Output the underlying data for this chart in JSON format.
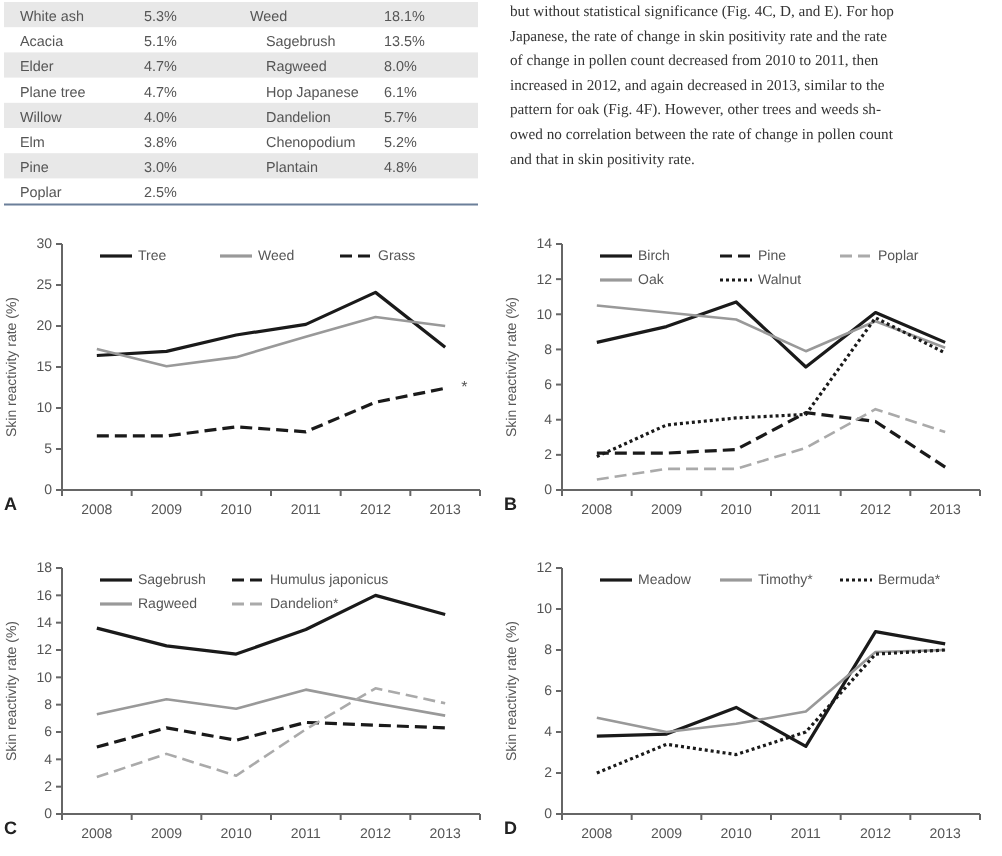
{
  "chart_data": [
    {
      "type": "other",
      "annotations": [
        "White ash",
        "5.3%",
        "Weed",
        "18.1%",
        "Acacia",
        "5.1%",
        "Sagebrush",
        "13.5%",
        "Elder",
        "4.7%",
        "Ragweed",
        "8.0%",
        "Plane tree",
        "4.7%",
        "Hop Japanese",
        "6.1%",
        "Willow",
        "4.0%",
        "Dandelion",
        "5.7%",
        "Elm",
        "3.8%",
        "Chenopodium",
        "5.2%",
        "Pine",
        "3.0%",
        "Plantain",
        "4.8%",
        "Poplar",
        "2.5%"
      ]
    },
    {
      "type": "other",
      "annotations": [
        "but without statistical significance (Fig. 4C, D, and E). For hop",
        "Japanese, the rate of change in skin positivity rate and the rate",
        "of change in pollen count decreased from 2010 to 2011, then",
        "increased in 2012, and again decreased in 2013, similar to the",
        "pattern for oak (Fig. 4F). However, other trees and weeds sh-",
        "owed no correlation between the rate of change in pollen count",
        "and that in skin positivity rate."
      ]
    },
    {
      "type": "line",
      "categories": [
        "2008",
        "2009",
        "2010",
        "2011",
        "2012",
        "2013"
      ],
      "ylabel": "Skin reactivity rate (%)",
      "ylim": [
        0,
        30
      ],
      "yticks": [
        0,
        5,
        10,
        15,
        20,
        25,
        30
      ],
      "legend": "top",
      "annotations": [
        "A",
        {
          "text": "*",
          "x": "2013",
          "y": 12.4
        }
      ],
      "series": [
        {
          "name": "Tree",
          "color": "#1a1a1a",
          "line_style": "solid",
          "values": [
            16.4,
            16.9,
            18.9,
            20.2,
            24.1,
            17.4
          ]
        },
        {
          "name": "Weed",
          "color": "#999999",
          "line_style": "solid",
          "values": [
            17.2,
            15.1,
            16.2,
            18.7,
            21.1,
            20.0
          ]
        },
        {
          "name": "Grass",
          "color": "#1a1a1a",
          "line_style": "dashed",
          "values": [
            6.6,
            6.6,
            7.7,
            7.1,
            10.7,
            12.4
          ]
        }
      ]
    },
    {
      "type": "line",
      "categories": [
        "2008",
        "2009",
        "2010",
        "2011",
        "2012",
        "2013"
      ],
      "ylabel": "Skin reactivity rate (%)",
      "ylim": [
        0,
        14
      ],
      "yticks": [
        0,
        2,
        4,
        6,
        8,
        10,
        12,
        14
      ],
      "legend": "top",
      "annotations": [
        "B"
      ],
      "series": [
        {
          "name": "Birch",
          "color": "#1a1a1a",
          "line_style": "solid",
          "values": [
            8.4,
            9.3,
            10.7,
            7.0,
            10.1,
            8.4
          ]
        },
        {
          "name": "Pine",
          "color": "#1a1a1a",
          "line_style": "dashed",
          "values": [
            2.1,
            2.1,
            2.3,
            4.4,
            3.9,
            1.3
          ]
        },
        {
          "name": "Poplar",
          "color": "#aaaaaa",
          "line_style": "dashed",
          "values": [
            0.6,
            1.2,
            1.2,
            2.4,
            4.6,
            3.3
          ]
        },
        {
          "name": "Oak",
          "color": "#999999",
          "line_style": "solid",
          "values": [
            10.5,
            10.1,
            9.7,
            7.9,
            9.6,
            8.1
          ]
        },
        {
          "name": "Walnut",
          "color": "#1a1a1a",
          "line_style": "dotted",
          "values": [
            1.9,
            3.7,
            4.1,
            4.3,
            9.8,
            7.8
          ]
        }
      ]
    },
    {
      "type": "line",
      "categories": [
        "2008",
        "2009",
        "2010",
        "2011",
        "2012",
        "2013"
      ],
      "ylabel": "Skin reactivity rate (%)",
      "ylim": [
        0,
        18
      ],
      "yticks": [
        0,
        2,
        4,
        6,
        8,
        10,
        12,
        14,
        16,
        18
      ],
      "legend": "top",
      "annotations": [
        "C"
      ],
      "series": [
        {
          "name": "Sagebrush",
          "color": "#1a1a1a",
          "line_style": "solid",
          "values": [
            13.6,
            12.3,
            11.7,
            13.5,
            16.0,
            14.6
          ]
        },
        {
          "name": "Humulus japonicus",
          "color": "#1a1a1a",
          "line_style": "dashed",
          "values": [
            4.9,
            6.3,
            5.4,
            6.7,
            6.5,
            6.3
          ]
        },
        {
          "name": "Ragweed",
          "color": "#999999",
          "line_style": "solid",
          "values": [
            7.3,
            8.4,
            7.7,
            9.1,
            8.1,
            7.2
          ]
        },
        {
          "name": "Dandelion*",
          "color": "#aaaaaa",
          "line_style": "dashed",
          "values": [
            2.7,
            4.4,
            2.8,
            6.2,
            9.2,
            8.1
          ]
        }
      ]
    },
    {
      "type": "line",
      "categories": [
        "2008",
        "2009",
        "2010",
        "2011",
        "2012",
        "2013"
      ],
      "ylabel": "Skin reactivity rate (%)",
      "ylim": [
        0,
        12
      ],
      "yticks": [
        0,
        2,
        4,
        6,
        8,
        10,
        12
      ],
      "legend": "top",
      "annotations": [
        "D"
      ],
      "series": [
        {
          "name": "Meadow",
          "color": "#1a1a1a",
          "line_style": "solid",
          "values": [
            3.8,
            3.9,
            5.2,
            3.3,
            8.9,
            8.3
          ]
        },
        {
          "name": "Timothy*",
          "color": "#999999",
          "line_style": "solid",
          "values": [
            4.7,
            4.0,
            4.4,
            5.0,
            7.9,
            8.0
          ]
        },
        {
          "name": "Bermuda*",
          "color": "#1a1a1a",
          "line_style": "dotted",
          "values": [
            2.0,
            3.4,
            2.9,
            4.0,
            7.8,
            8.0
          ]
        }
      ]
    }
  ]
}
